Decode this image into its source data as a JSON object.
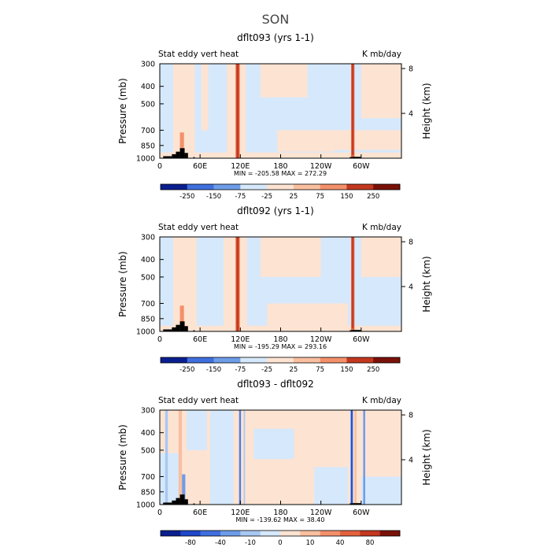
{
  "figure_title": "SON",
  "colors": {
    "palette": [
      "#0a1f8f",
      "#1f47c7",
      "#3f6fde",
      "#6d9ce8",
      "#a8c8f2",
      "#d6e8fb",
      "#fde3d2",
      "#f9bf9f",
      "#f3906a",
      "#e2623e",
      "#c3381f",
      "#7a1109"
    ],
    "missing": "#ffffff",
    "topography": "#000000"
  },
  "chart_data": [
    {
      "type": "heatmap",
      "title": "dflt093 (yrs 1-1)",
      "left_label": "Stat eddy vert heat",
      "right_label": "K mb/day",
      "ylabel": "Pressure (mb)",
      "y2label": "Height (km)",
      "pressure_ticks": [
        300,
        400,
        500,
        700,
        850,
        1000
      ],
      "height_ticks": [
        4,
        8
      ],
      "xlim": [
        0,
        360
      ],
      "x_ticks": [
        {
          "lon": 0,
          "label": "0"
        },
        {
          "lon": 60,
          "label": "60E"
        },
        {
          "lon": 120,
          "label": "120E"
        },
        {
          "lon": 180,
          "label": "180"
        },
        {
          "lon": 240,
          "label": "120W"
        },
        {
          "lon": 300,
          "label": "60W"
        }
      ],
      "min": -205.58,
      "max": 272.29,
      "minmax_text": "MIN = -205.58   MAX = 272.29",
      "colorbar_labels": [
        "-250",
        "-150",
        "-75",
        "-25",
        "25",
        "75",
        "150",
        "250"
      ],
      "bands": [
        {
          "lon0": 0,
          "lon1": 360,
          "p0": 300,
          "p1": 1000,
          "level": 5
        },
        {
          "lon0": 130,
          "lon1": 265,
          "p0": 450,
          "p1": 720,
          "level": 5
        },
        {
          "lon0": 20,
          "lon1": 52,
          "p0": 300,
          "p1": 1000,
          "level": 6
        },
        {
          "lon0": 62,
          "lon1": 72,
          "p0": 300,
          "p1": 700,
          "level": 6
        },
        {
          "lon0": 100,
          "lon1": 128,
          "p0": 300,
          "p1": 1000,
          "level": 6
        },
        {
          "lon0": 150,
          "lon1": 220,
          "p0": 300,
          "p1": 460,
          "level": 6
        },
        {
          "lon0": 175,
          "lon1": 260,
          "p0": 700,
          "p1": 920,
          "level": 6
        },
        {
          "lon0": 300,
          "lon1": 360,
          "p0": 300,
          "p1": 600,
          "level": 6
        },
        {
          "lon0": 260,
          "lon1": 360,
          "p0": 700,
          "p1": 900,
          "level": 6
        },
        {
          "lon0": 0,
          "lon1": 360,
          "p0": 930,
          "p1": 1000,
          "level": 6
        },
        {
          "lon0": 30,
          "lon1": 36,
          "p0": 720,
          "p1": 950,
          "level": 8
        },
        {
          "lon0": 113,
          "lon1": 119,
          "p0": 300,
          "p1": 1000,
          "level": 9
        },
        {
          "lon0": 114.5,
          "lon1": 117.5,
          "p0": 300,
          "p1": 1000,
          "level": 10
        },
        {
          "lon0": 285,
          "lon1": 290,
          "p0": 300,
          "p1": 1000,
          "level": 9
        },
        {
          "lon0": 286.3,
          "lon1": 288.7,
          "p0": 300,
          "p1": 960,
          "level": 10
        }
      ],
      "topography": [
        {
          "lon0": 5,
          "lon1": 18,
          "p_top": 975
        },
        {
          "lon0": 18,
          "lon1": 24,
          "p_top": 950
        },
        {
          "lon0": 24,
          "lon1": 30,
          "p_top": 920
        },
        {
          "lon0": 30,
          "lon1": 37,
          "p_top": 880
        },
        {
          "lon0": 37,
          "lon1": 42,
          "p_top": 935
        },
        {
          "lon0": 50,
          "lon1": 52,
          "p_top": 985
        },
        {
          "lon0": 283,
          "lon1": 287,
          "p_top": 985
        },
        {
          "lon0": 287,
          "lon1": 300,
          "p_top": 982
        }
      ]
    },
    {
      "type": "heatmap",
      "title": "dflt092 (yrs 1-1)",
      "left_label": "Stat eddy vert heat",
      "right_label": "K mb/day",
      "ylabel": "Pressure (mb)",
      "y2label": "Height (km)",
      "pressure_ticks": [
        300,
        400,
        500,
        700,
        850,
        1000
      ],
      "height_ticks": [
        4,
        8
      ],
      "xlim": [
        0,
        360
      ],
      "x_ticks": [
        {
          "lon": 0,
          "label": "0"
        },
        {
          "lon": 60,
          "label": "60E"
        },
        {
          "lon": 120,
          "label": "120E"
        },
        {
          "lon": 180,
          "label": "180"
        },
        {
          "lon": 240,
          "label": "120W"
        },
        {
          "lon": 300,
          "label": "60W"
        }
      ],
      "min": -195.29,
      "max": 293.16,
      "minmax_text": "MIN = -195.29   MAX = 293.16",
      "colorbar_labels": [
        "-250",
        "-150",
        "-75",
        "-25",
        "25",
        "75",
        "150",
        "250"
      ],
      "bands": [
        {
          "lon0": 0,
          "lon1": 360,
          "p0": 300,
          "p1": 1000,
          "level": 5
        },
        {
          "lon0": 140,
          "lon1": 260,
          "p0": 520,
          "p1": 700,
          "level": 5
        },
        {
          "lon0": 20,
          "lon1": 55,
          "p0": 300,
          "p1": 1000,
          "level": 6
        },
        {
          "lon0": 95,
          "lon1": 130,
          "p0": 300,
          "p1": 1000,
          "level": 6
        },
        {
          "lon0": 150,
          "lon1": 240,
          "p0": 300,
          "p1": 500,
          "level": 6
        },
        {
          "lon0": 160,
          "lon1": 280,
          "p0": 700,
          "p1": 930,
          "level": 6
        },
        {
          "lon0": 300,
          "lon1": 360,
          "p0": 300,
          "p1": 500,
          "level": 6
        },
        {
          "lon0": 0,
          "lon1": 360,
          "p0": 930,
          "p1": 1000,
          "level": 6
        },
        {
          "lon0": 30,
          "lon1": 36,
          "p0": 720,
          "p1": 950,
          "level": 8
        },
        {
          "lon0": 113,
          "lon1": 119,
          "p0": 300,
          "p1": 1000,
          "level": 9
        },
        {
          "lon0": 114.5,
          "lon1": 117.5,
          "p0": 300,
          "p1": 1000,
          "level": 10
        },
        {
          "lon0": 285,
          "lon1": 290,
          "p0": 300,
          "p1": 1000,
          "level": 9
        },
        {
          "lon0": 286.3,
          "lon1": 288.7,
          "p0": 300,
          "p1": 960,
          "level": 10
        }
      ],
      "topography": [
        {
          "lon0": 5,
          "lon1": 18,
          "p_top": 975
        },
        {
          "lon0": 18,
          "lon1": 24,
          "p_top": 950
        },
        {
          "lon0": 24,
          "lon1": 30,
          "p_top": 920
        },
        {
          "lon0": 30,
          "lon1": 37,
          "p_top": 880
        },
        {
          "lon0": 37,
          "lon1": 42,
          "p_top": 935
        },
        {
          "lon0": 50,
          "lon1": 52,
          "p_top": 985
        },
        {
          "lon0": 283,
          "lon1": 287,
          "p_top": 985
        },
        {
          "lon0": 287,
          "lon1": 300,
          "p_top": 982
        }
      ]
    },
    {
      "type": "heatmap",
      "title": "dflt093 - dflt092",
      "left_label": "Stat eddy vert heat",
      "right_label": "K mb/day",
      "ylabel": "Pressure (mb)",
      "y2label": "Height (km)",
      "pressure_ticks": [
        300,
        400,
        500,
        700,
        850,
        1000
      ],
      "height_ticks": [
        4,
        8
      ],
      "xlim": [
        0,
        360
      ],
      "x_ticks": [
        {
          "lon": 0,
          "label": "0"
        },
        {
          "lon": 60,
          "label": "60E"
        },
        {
          "lon": 120,
          "label": "120E"
        },
        {
          "lon": 180,
          "label": "180"
        },
        {
          "lon": 240,
          "label": "120W"
        },
        {
          "lon": 300,
          "label": "60W"
        }
      ],
      "min": -139.62,
      "max": 38.4,
      "minmax_text": "MIN = -139.62   MAX = 38.40",
      "colorbar_labels": [
        "-80",
        "-40",
        "-10",
        "0",
        "10",
        "40",
        "80"
      ],
      "bands": [
        {
          "lon0": 0,
          "lon1": 360,
          "p0": 300,
          "p1": 1000,
          "level": 6
        },
        {
          "lon0": 0,
          "lon1": 30,
          "p0": 520,
          "p1": 1000,
          "level": 5
        },
        {
          "lon0": 40,
          "lon1": 70,
          "p0": 300,
          "p1": 500,
          "level": 5
        },
        {
          "lon0": 75,
          "lon1": 110,
          "p0": 300,
          "p1": 1000,
          "level": 5
        },
        {
          "lon0": 140,
          "lon1": 200,
          "p0": 380,
          "p1": 560,
          "level": 5
        },
        {
          "lon0": 230,
          "lon1": 280,
          "p0": 620,
          "p1": 1000,
          "level": 5
        },
        {
          "lon0": 300,
          "lon1": 360,
          "p0": 700,
          "p1": 1000,
          "level": 5
        },
        {
          "lon0": 8,
          "lon1": 12,
          "p0": 300,
          "p1": 1000,
          "level": 4
        },
        {
          "lon0": 33,
          "lon1": 38,
          "p0": 680,
          "p1": 950,
          "level": 3
        },
        {
          "lon0": 28,
          "lon1": 33,
          "p0": 300,
          "p1": 1000,
          "level": 7
        },
        {
          "lon0": 118,
          "lon1": 121,
          "p0": 300,
          "p1": 1000,
          "level": 3
        },
        {
          "lon0": 119,
          "lon1": 120.5,
          "p0": 300,
          "p1": 1000,
          "level": 2
        },
        {
          "lon0": 125,
          "lon1": 127,
          "p0": 300,
          "p1": 1000,
          "level": 4
        },
        {
          "lon0": 284,
          "lon1": 288,
          "p0": 300,
          "p1": 1000,
          "level": 3
        },
        {
          "lon0": 285,
          "lon1": 287,
          "p0": 300,
          "p1": 1000,
          "level": 1
        },
        {
          "lon0": 290,
          "lon1": 293,
          "p0": 300,
          "p1": 1000,
          "level": 7
        },
        {
          "lon0": 303,
          "lon1": 306,
          "p0": 300,
          "p1": 1000,
          "level": 3
        }
      ],
      "topography": [
        {
          "lon0": 5,
          "lon1": 18,
          "p_top": 975
        },
        {
          "lon0": 18,
          "lon1": 24,
          "p_top": 950
        },
        {
          "lon0": 24,
          "lon1": 30,
          "p_top": 920
        },
        {
          "lon0": 30,
          "lon1": 37,
          "p_top": 880
        },
        {
          "lon0": 37,
          "lon1": 42,
          "p_top": 935
        },
        {
          "lon0": 50,
          "lon1": 52,
          "p_top": 985
        },
        {
          "lon0": 283,
          "lon1": 287,
          "p_top": 985
        },
        {
          "lon0": 287,
          "lon1": 300,
          "p_top": 982
        }
      ]
    }
  ]
}
